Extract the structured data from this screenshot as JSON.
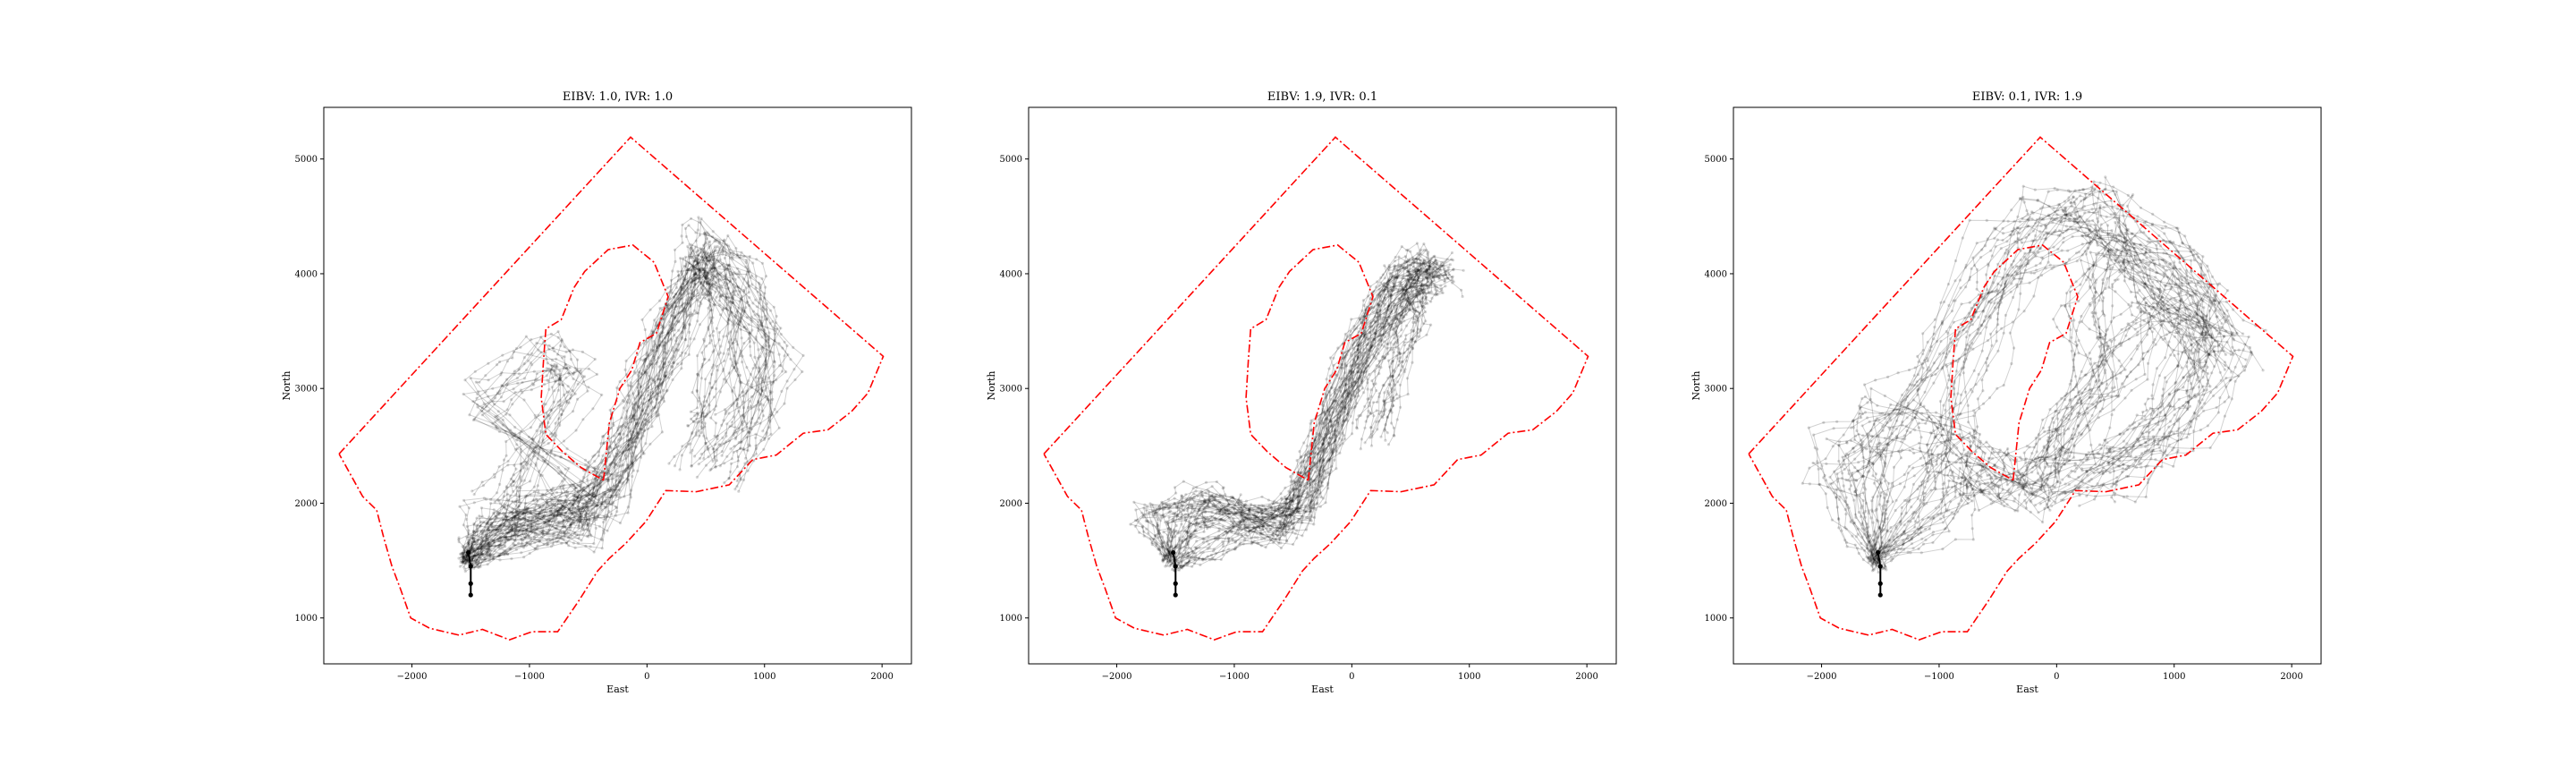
{
  "chart_data": [
    {
      "type": "line",
      "title": "EIBV: 1.0, IVR: 1.0",
      "xlabel": "East",
      "ylabel": "North",
      "xlim": [
        -2750,
        2250
      ],
      "ylim": [
        600,
        5450
      ],
      "xticks": [
        -2000,
        -1000,
        0,
        1000,
        2000
      ],
      "xtick_labels": [
        "−2000",
        "−1000",
        "0",
        "1000",
        "2000"
      ],
      "yticks": [
        1000,
        2000,
        3000,
        4000,
        5000
      ],
      "ytick_labels": [
        "1000",
        "2000",
        "3000",
        "4000",
        "5000"
      ],
      "grid": false,
      "boundary_color": "#ff0000",
      "trajectory_color": "#000000",
      "start_path": [
        [
          -1500,
          1200
        ],
        [
          -1500,
          1300
        ],
        [
          -1500,
          1450
        ],
        [
          -1520,
          1570
        ]
      ],
      "path_spread": 220,
      "path_centerlines": [
        [
          [
            -1550,
            1500
          ],
          [
            -1300,
            1800
          ],
          [
            -900,
            1900
          ],
          [
            -500,
            1800
          ],
          [
            -300,
            2200
          ],
          [
            -100,
            2900
          ],
          [
            150,
            3600
          ],
          [
            400,
            4050
          ],
          [
            700,
            4000
          ],
          [
            900,
            3400
          ],
          [
            900,
            2700
          ],
          [
            600,
            2300
          ]
        ],
        [
          [
            -1550,
            1500
          ],
          [
            -1400,
            1850
          ],
          [
            -800,
            1950
          ],
          [
            -400,
            1850
          ],
          [
            -200,
            2500
          ],
          [
            0,
            3200
          ],
          [
            300,
            3900
          ],
          [
            550,
            4300
          ],
          [
            900,
            3900
          ],
          [
            1150,
            3300
          ],
          [
            800,
            2600
          ]
        ],
        [
          [
            -1500,
            1450
          ],
          [
            -1100,
            1750
          ],
          [
            -700,
            1850
          ],
          [
            -350,
            2100
          ],
          [
            -100,
            2800
          ],
          [
            200,
            3500
          ],
          [
            500,
            4100
          ],
          [
            700,
            3700
          ],
          [
            600,
            3000
          ],
          [
            400,
            2500
          ]
        ],
        [
          [
            -1550,
            1500
          ],
          [
            -1300,
            1750
          ],
          [
            -900,
            1900
          ],
          [
            -500,
            2150
          ],
          [
            -1400,
            2900
          ],
          [
            -900,
            3300
          ],
          [
            -600,
            3050
          ],
          [
            -1000,
            2400
          ],
          [
            -1300,
            1900
          ]
        ]
      ],
      "paths_per_line": 14
    },
    {
      "type": "line",
      "title": "EIBV: 1.9, IVR: 0.1",
      "xlabel": "East",
      "ylabel": "North",
      "xlim": [
        -2750,
        2250
      ],
      "ylim": [
        600,
        5450
      ],
      "xticks": [
        -2000,
        -1000,
        0,
        1000,
        2000
      ],
      "xtick_labels": [
        "−2000",
        "−1000",
        "0",
        "1000",
        "2000"
      ],
      "yticks": [
        1000,
        2000,
        3000,
        4000,
        5000
      ],
      "ytick_labels": [
        "1000",
        "2000",
        "3000",
        "4000",
        "5000"
      ],
      "grid": false,
      "boundary_color": "#ff0000",
      "trajectory_color": "#000000",
      "start_path": [
        [
          -1500,
          1200
        ],
        [
          -1500,
          1300
        ],
        [
          -1500,
          1450
        ],
        [
          -1520,
          1570
        ]
      ],
      "path_spread": 170,
      "path_centerlines": [
        [
          [
            -1550,
            1500
          ],
          [
            -1700,
            1850
          ],
          [
            -1300,
            2050
          ],
          [
            -900,
            1900
          ],
          [
            -500,
            1800
          ],
          [
            -300,
            2400
          ],
          [
            -50,
            3100
          ],
          [
            250,
            3700
          ],
          [
            550,
            4100
          ],
          [
            800,
            3950
          ]
        ],
        [
          [
            -1550,
            1500
          ],
          [
            -1400,
            1900
          ],
          [
            -1100,
            1950
          ],
          [
            -700,
            1750
          ],
          [
            -350,
            2100
          ],
          [
            -100,
            2900
          ],
          [
            150,
            3500
          ],
          [
            450,
            3900
          ],
          [
            700,
            4050
          ]
        ],
        [
          [
            -1500,
            1450
          ],
          [
            -1200,
            1700
          ],
          [
            -800,
            1800
          ],
          [
            -400,
            2000
          ],
          [
            -200,
            2600
          ],
          [
            100,
            3300
          ],
          [
            400,
            3800
          ],
          [
            600,
            4000
          ],
          [
            500,
            3600
          ],
          [
            300,
            3100
          ],
          [
            200,
            2600
          ]
        ]
      ],
      "paths_per_line": 16
    },
    {
      "type": "line",
      "title": "EIBV: 0.1, IVR: 1.9",
      "xlabel": "East",
      "ylabel": "North",
      "xlim": [
        -2750,
        2250
      ],
      "ylim": [
        600,
        5450
      ],
      "xticks": [
        -2000,
        -1000,
        0,
        1000,
        2000
      ],
      "xtick_labels": [
        "−2000",
        "−1000",
        "0",
        "1000",
        "2000"
      ],
      "yticks": [
        1000,
        2000,
        3000,
        4000,
        5000
      ],
      "ytick_labels": [
        "1000",
        "2000",
        "3000",
        "4000",
        "5000"
      ],
      "grid": false,
      "boundary_color": "#ff0000",
      "trajectory_color": "#000000",
      "start_path": [
        [
          -1500,
          1200
        ],
        [
          -1500,
          1300
        ],
        [
          -1500,
          1450
        ],
        [
          -1520,
          1570
        ]
      ],
      "path_spread": 280,
      "path_centerlines": [
        [
          [
            -1550,
            1500
          ],
          [
            -1650,
            2200
          ],
          [
            -1400,
            2800
          ],
          [
            -900,
            3500
          ],
          [
            -500,
            4200
          ],
          [
            -100,
            4600
          ],
          [
            300,
            4500
          ],
          [
            700,
            4000
          ],
          [
            1100,
            3600
          ],
          [
            1400,
            3200
          ],
          [
            1200,
            2700
          ],
          [
            600,
            2300
          ],
          [
            0,
            2200
          ]
        ],
        [
          [
            -1550,
            1500
          ],
          [
            -1200,
            2000
          ],
          [
            -900,
            2600
          ],
          [
            -700,
            3300
          ],
          [
            -400,
            3900
          ],
          [
            0,
            4350
          ],
          [
            400,
            4550
          ],
          [
            800,
            4200
          ],
          [
            1200,
            3700
          ],
          [
            1000,
            3000
          ],
          [
            700,
            2500
          ],
          [
            300,
            2200
          ]
        ],
        [
          [
            -1500,
            1450
          ],
          [
            -1700,
            1900
          ],
          [
            -1900,
            2400
          ],
          [
            -1400,
            2700
          ],
          [
            -900,
            2500
          ],
          [
            -500,
            2200
          ],
          [
            -200,
            2250
          ],
          [
            200,
            2700
          ],
          [
            600,
            3300
          ],
          [
            900,
            3800
          ],
          [
            1300,
            3300
          ]
        ],
        [
          [
            -1550,
            1500
          ],
          [
            -1000,
            1900
          ],
          [
            -700,
            2300
          ],
          [
            -300,
            2100
          ],
          [
            100,
            2500
          ],
          [
            400,
            3100
          ],
          [
            200,
            3700
          ],
          [
            500,
            4300
          ],
          [
            1000,
            4000
          ],
          [
            1500,
            3400
          ]
        ]
      ],
      "paths_per_line": 13
    }
  ],
  "boundary_outer": [
    [
      -2620,
      2430
    ],
    [
      -140,
      5190
    ],
    [
      2010,
      3280
    ],
    [
      1880,
      2960
    ],
    [
      1740,
      2800
    ],
    [
      1540,
      2640
    ],
    [
      1330,
      2610
    ],
    [
      1100,
      2420
    ],
    [
      900,
      2380
    ],
    [
      700,
      2160
    ],
    [
      420,
      2100
    ],
    [
      160,
      2110
    ],
    [
      -10,
      1840
    ],
    [
      -180,
      1650
    ],
    [
      -320,
      1520
    ],
    [
      -420,
      1410
    ],
    [
      -580,
      1150
    ],
    [
      -760,
      880
    ],
    [
      -980,
      880
    ],
    [
      -1170,
      810
    ],
    [
      -1400,
      900
    ],
    [
      -1600,
      850
    ],
    [
      -1850,
      910
    ],
    [
      -2010,
      1000
    ],
    [
      -2100,
      1260
    ],
    [
      -2170,
      1450
    ],
    [
      -2240,
      1700
    ],
    [
      -2300,
      1940
    ],
    [
      -2420,
      2060
    ],
    [
      -2620,
      2430
    ]
  ],
  "boundary_inner": [
    [
      -370,
      2200
    ],
    [
      -320,
      2700
    ],
    [
      -230,
      3000
    ],
    [
      -130,
      3160
    ],
    [
      -60,
      3400
    ],
    [
      80,
      3480
    ],
    [
      180,
      3800
    ],
    [
      60,
      4100
    ],
    [
      -120,
      4250
    ],
    [
      -330,
      4210
    ],
    [
      -530,
      4020
    ],
    [
      -620,
      3880
    ],
    [
      -730,
      3600
    ],
    [
      -860,
      3520
    ],
    [
      -880,
      3250
    ],
    [
      -900,
      2920
    ],
    [
      -860,
      2600
    ],
    [
      -720,
      2450
    ],
    [
      -560,
      2310
    ],
    [
      -370,
      2200
    ]
  ]
}
